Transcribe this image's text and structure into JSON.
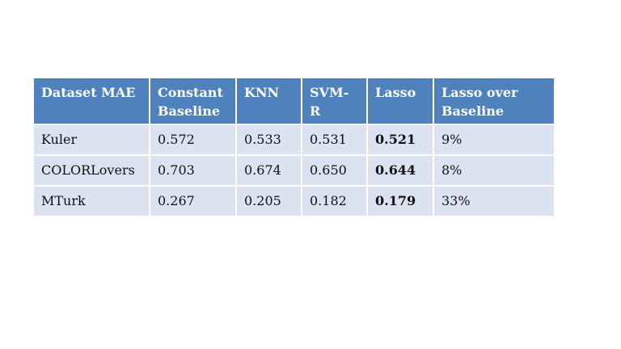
{
  "table": {
    "headers": [
      "Dataset MAE",
      "Constant Baseline",
      "KNN",
      "SVM-R",
      "Lasso",
      "Lasso over Baseline"
    ],
    "rows": [
      {
        "dataset": "Kuler",
        "constant_baseline": "0.572",
        "knn": "0.533",
        "svm_r": "0.531",
        "lasso": "0.521",
        "lasso_over_baseline": "9%"
      },
      {
        "dataset": "COLORLovers",
        "constant_baseline": "0.703",
        "knn": "0.674",
        "svm_r": "0.650",
        "lasso": "0.644",
        "lasso_over_baseline": "8%"
      },
      {
        "dataset": "MTurk",
        "constant_baseline": "0.267",
        "knn": "0.205",
        "svm_r": "0.182",
        "lasso": "0.179",
        "lasso_over_baseline": "33%"
      }
    ]
  },
  "colors": {
    "header_background": "#4f81bd",
    "row_background": "#dbe3f0",
    "header_text": "#ffffff"
  }
}
